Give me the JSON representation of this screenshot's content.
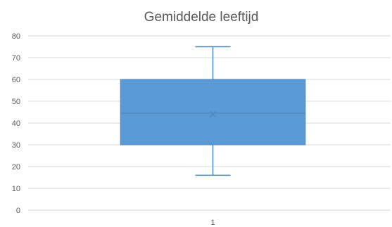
{
  "chart_data": {
    "type": "boxplot",
    "title": "Gemiddelde leeftijd",
    "xlabel": "",
    "ylabel": "",
    "ylim": [
      0,
      80
    ],
    "y_ticks": [
      0,
      10,
      20,
      30,
      40,
      50,
      60,
      70,
      80
    ],
    "grid": true,
    "categories": [
      "1"
    ],
    "boxes": [
      {
        "category": "1",
        "min": 16,
        "q1": 30,
        "median": 44.5,
        "q3": 60,
        "max": 75,
        "mean": 44
      }
    ],
    "colors": {
      "box_fill": "#5b9bd5",
      "box_stroke": "#4a86c0",
      "whisker": "#4a86c0",
      "grid": "#d9d9d9",
      "text": "#595959"
    }
  }
}
